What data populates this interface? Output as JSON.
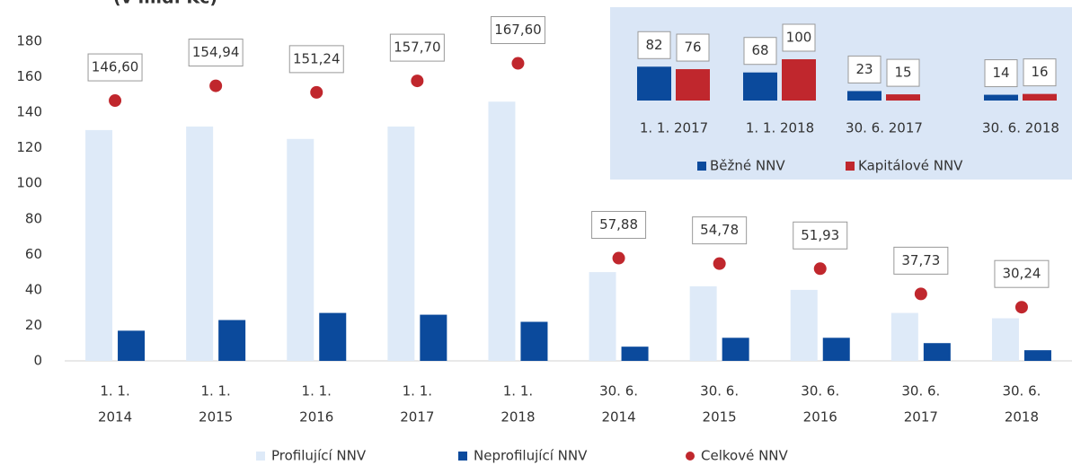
{
  "chart_data": [
    {
      "type": "bar",
      "title": "(v mld. Kč)",
      "categories": [
        [
          "1. 1.",
          "2014"
        ],
        [
          "1. 1.",
          "2015"
        ],
        [
          "1. 1.",
          "2016"
        ],
        [
          "1. 1.",
          "2017"
        ],
        [
          "1. 1.",
          "2018"
        ],
        [
          "30. 6.",
          "2014"
        ],
        [
          "30. 6.",
          "2015"
        ],
        [
          "30. 6.",
          "2016"
        ],
        [
          "30. 6.",
          "2017"
        ],
        [
          "30. 6.",
          "2018"
        ]
      ],
      "series": [
        {
          "name": "Profilující NNV",
          "color": "#deeaf8",
          "values": [
            130,
            132,
            125,
            132,
            146,
            50,
            42,
            40,
            27,
            24
          ]
        },
        {
          "name": "Neprofilující NNV",
          "color": "#0b4a9c",
          "values": [
            17,
            23,
            27,
            26,
            22,
            8,
            13,
            13,
            10,
            6
          ]
        },
        {
          "name": "Celkové NNV",
          "color": "#c0272d",
          "type": "scatter",
          "values": [
            146.6,
            154.94,
            151.24,
            157.7,
            167.6,
            57.88,
            54.78,
            51.93,
            37.73,
            30.24
          ],
          "value_labels": [
            "146,60",
            "154,94",
            "151,24",
            "157,70",
            "167,60",
            "57,88",
            "54,78",
            "51,93",
            "37,73",
            "30,24"
          ]
        }
      ],
      "ylim": [
        0,
        180
      ],
      "yticks": [
        0,
        20,
        40,
        60,
        80,
        100,
        120,
        140,
        160,
        180
      ],
      "legend": "bottom"
    },
    {
      "type": "bar",
      "categories": [
        "1. 1. 2017",
        "1. 1. 2018",
        "30. 6. 2017",
        "30. 6. 2018"
      ],
      "series": [
        {
          "name": "Běžné NNV",
          "color": "#0b4a9c",
          "values": [
            82,
            68,
            23,
            14
          ]
        },
        {
          "name": "Kapitálové NNV",
          "color": "#c0272d",
          "values": [
            76,
            100,
            15,
            16
          ]
        }
      ],
      "legend": "bottom"
    }
  ]
}
